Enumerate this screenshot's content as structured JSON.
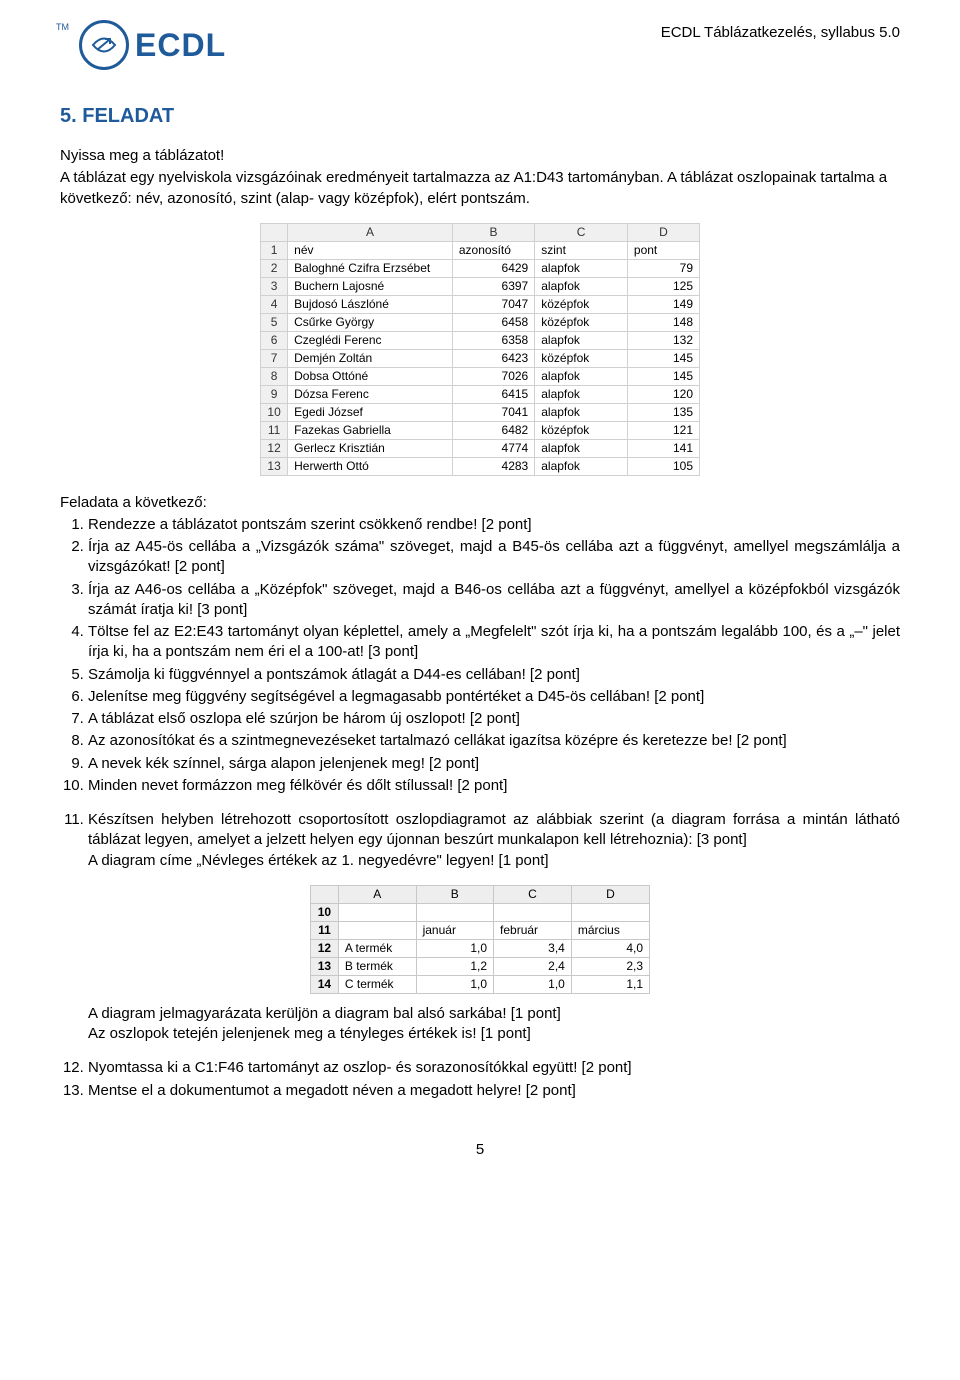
{
  "header": {
    "logo_text": "ECDL",
    "tm": "TM",
    "right": "ECDL Táblázatkezelés, syllabus 5.0",
    "logo_color": "#1f5a9a"
  },
  "title": "5. FELADAT",
  "intro": {
    "l1": "Nyissa meg a táblázatot!",
    "l2": "A táblázat egy nyelviskola vizsgázóinak eredményeit tartalmazza az A1:D43 tartományban. A táblázat oszlopainak tartalma a következő: név, azonosító, szint (alap- vagy középfok), elért pontszám."
  },
  "table1": {
    "cols": [
      "A",
      "B",
      "C",
      "D"
    ],
    "head": [
      "név",
      "azonosító",
      "szint",
      "pont"
    ],
    "rows": [
      {
        "n": 2,
        "a": "Baloghné Czifra Erzsébet",
        "b": 6429,
        "c": "alapfok",
        "d": 79
      },
      {
        "n": 3,
        "a": "Buchern Lajosné",
        "b": 6397,
        "c": "alapfok",
        "d": 125
      },
      {
        "n": 4,
        "a": "Bujdosó Lászlóné",
        "b": 7047,
        "c": "középfok",
        "d": 149
      },
      {
        "n": 5,
        "a": "Csűrke György",
        "b": 6458,
        "c": "középfok",
        "d": 148
      },
      {
        "n": 6,
        "a": "Czeglédi Ferenc",
        "b": 6358,
        "c": "alapfok",
        "d": 132
      },
      {
        "n": 7,
        "a": "Demjén Zoltán",
        "b": 6423,
        "c": "középfok",
        "d": 145
      },
      {
        "n": 8,
        "a": "Dobsa Ottóné",
        "b": 7026,
        "c": "alapfok",
        "d": 145
      },
      {
        "n": 9,
        "a": "Dózsa Ferenc",
        "b": 6415,
        "c": "alapfok",
        "d": 120
      },
      {
        "n": 10,
        "a": "Egedi József",
        "b": 7041,
        "c": "alapfok",
        "d": 135
      },
      {
        "n": 11,
        "a": "Fazekas Gabriella",
        "b": 6482,
        "c": "középfok",
        "d": 121
      },
      {
        "n": 12,
        "a": "Gerlecz Krisztián",
        "b": 4774,
        "c": "alapfok",
        "d": 141
      },
      {
        "n": 13,
        "a": "Herwerth Ottó",
        "b": 4283,
        "c": "alapfok",
        "d": 105
      }
    ]
  },
  "tasks_lead": "Feladata a következő:",
  "tasks1": [
    "Rendezze a táblázatot pontszám szerint csökkenő rendbe! [2 pont]",
    "Írja az A45-ös cellába a „Vizsgázók száma\" szöveget, majd a B45-ös cellába azt a függvényt, amellyel megszámlálja a vizsgázókat! [2 pont]",
    "Írja az A46-os cellába a „Középfok\" szöveget, majd a B46-os cellába azt a függvényt, amellyel a középfokból vizsgázók számát íratja ki! [3 pont]",
    "Töltse fel az E2:E43 tartományt olyan képlettel, amely a „Megfelelt\" szót írja ki, ha a pontszám legalább 100, és a „–\" jelet írja ki, ha a pontszám nem éri el a 100-at! [3 pont]",
    "Számolja ki függvénnyel a pontszámok átlagát a D44-es cellában! [2 pont]",
    "Jelenítse meg függvény segítségével a legmagasabb pontértéket a D45-ös cellában! [2 pont]",
    "A táblázat első oszlopa elé szúrjon be három új oszlopot! [2 pont]",
    "Az azonosítókat és a szintmegnevezéseket tartalmazó cellákat igazítsa középre és keretezze be! [2 pont]",
    "A nevek kék színnel, sárga alapon jelenjenek meg! [2 pont]",
    "Minden nevet formázzon meg félkövér és dőlt stílussal! [2 pont]"
  ],
  "task11": {
    "main": "Készítsen helyben létrehozott csoportosított oszlopdiagramot az alábbiak szerint (a diagram forrása a mintán látható táblázat legyen, amelyet a jelzett helyen egy újonnan beszúrt munkalapon kell létrehoznia): [3 pont]",
    "sub1": "A diagram címe „Névleges értékek az 1. negyedévre\" legyen! [1 pont]",
    "sub2": "A diagram jelmagyarázata kerüljön a diagram bal alsó sarkába! [1 pont]",
    "sub3": "Az oszlopok tetején jelenjenek meg a tényleges értékek is! [1 pont]"
  },
  "table2": {
    "cols": [
      "A",
      "B",
      "C",
      "D"
    ],
    "rows": [
      {
        "n": 10,
        "a": "",
        "b": "",
        "c": "",
        "d": ""
      },
      {
        "n": 11,
        "a": "",
        "b": "január",
        "c": "február",
        "d": "március"
      },
      {
        "n": 12,
        "a": "A termék",
        "b": "1,0",
        "c": "3,4",
        "d": "4,0"
      },
      {
        "n": 13,
        "a": "B termék",
        "b": "1,2",
        "c": "2,4",
        "d": "2,3"
      },
      {
        "n": 14,
        "a": "C termék",
        "b": "1,0",
        "c": "1,0",
        "d": "1,1"
      }
    ]
  },
  "tasks3": [
    "Nyomtassa ki a C1:F46 tartományt az oszlop- és sorazonosítókkal együtt! [2 pont]",
    "Mentse el a dokumentumot a megadott néven a megadott helyre! [2 pont]"
  ],
  "page_number": "5"
}
